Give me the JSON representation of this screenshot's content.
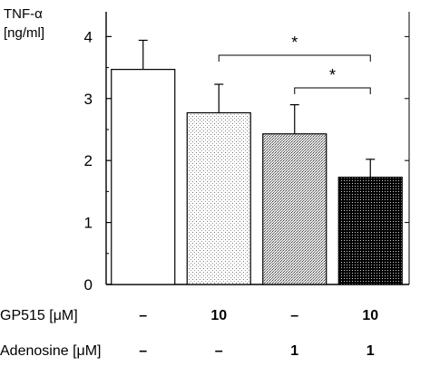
{
  "chart_data": {
    "type": "bar",
    "ylabel_lines": [
      "TNF-α",
      "[ng/ml]"
    ],
    "ylim": [
      0,
      4.4
    ],
    "y_ticks": [
      0,
      1,
      2,
      3,
      4
    ],
    "y_tick_labels": [
      "0",
      "1",
      "2",
      "3",
      "4"
    ],
    "values": [
      3.47,
      2.77,
      2.43,
      1.73
    ],
    "errors": [
      0.47,
      0.46,
      0.47,
      0.29
    ],
    "bar_patterns": [
      "white",
      "light-dots",
      "medium-dots",
      "dark-dots"
    ],
    "grid": false,
    "conditions": [
      {
        "label": "GP515 [μM]",
        "values": [
          "–",
          "10",
          "–",
          "10"
        ]
      },
      {
        "label": "Adenosine [μM]",
        "values": [
          "–",
          "–",
          "1",
          "1"
        ]
      }
    ],
    "significance": [
      {
        "from": 1,
        "to": 3,
        "label": "*"
      },
      {
        "from": 2,
        "to": 3,
        "label": "*"
      }
    ]
  }
}
